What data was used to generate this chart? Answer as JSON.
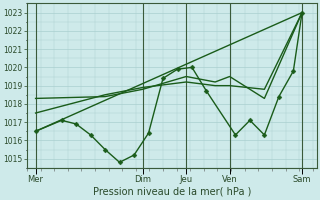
{
  "xlabel": "Pression niveau de la mer( hPa )",
  "background_color": "#ceeaea",
  "grid_color": "#aacfcf",
  "line_color": "#1a5c1a",
  "dark_line_color": "#2d4a2d",
  "ylim": [
    1014.5,
    1023.5
  ],
  "yticks": [
    1015,
    1016,
    1017,
    1018,
    1019,
    1020,
    1021,
    1022,
    1023
  ],
  "xlim": [
    0,
    100
  ],
  "day_ticks": [
    3,
    40,
    55,
    70,
    95
  ],
  "day_labels": [
    "Mer",
    "Dim",
    "Jeu",
    "Ven",
    "Sam"
  ],
  "minor_tick_count": 20,
  "series1_x": [
    3,
    12,
    17,
    22,
    27,
    32,
    37,
    42,
    47,
    52,
    57,
    62,
    72,
    77,
    82,
    87,
    92,
    95
  ],
  "series1_y": [
    1016.5,
    1017.1,
    1016.9,
    1016.3,
    1015.5,
    1014.8,
    1015.2,
    1016.4,
    1019.4,
    1019.9,
    1020.0,
    1018.7,
    1016.3,
    1017.1,
    1016.3,
    1018.4,
    1019.8,
    1023.0
  ],
  "series2_x": [
    3,
    27,
    40,
    55,
    65,
    70,
    82,
    95
  ],
  "series2_y": [
    1018.3,
    1018.4,
    1018.8,
    1019.5,
    1019.2,
    1019.5,
    1018.3,
    1023.0
  ],
  "series3_x": [
    3,
    27,
    40,
    55,
    65,
    70,
    82,
    95
  ],
  "series3_y": [
    1017.5,
    1018.5,
    1018.9,
    1019.2,
    1019.0,
    1019.0,
    1018.8,
    1023.0
  ],
  "series4_x": [
    3,
    95
  ],
  "series4_y": [
    1016.5,
    1023.0
  ],
  "vline_x": [
    3,
    40,
    55,
    70,
    95
  ],
  "marker_size": 2.5,
  "line_width": 1.0,
  "fig_width": 3.2,
  "fig_height": 2.0,
  "dpi": 100
}
